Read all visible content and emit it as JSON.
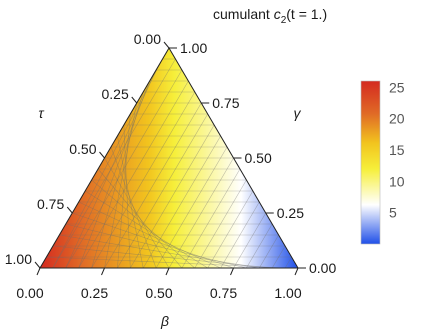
{
  "chart_data": {
    "type": "heatmap",
    "title": "cumulant c₂(t = 1.)",
    "title_parts": {
      "pre": "cumulant ",
      "var": "c",
      "sub": "2",
      "post": "(t = 1.)"
    },
    "axes": {
      "beta": {
        "label": "β",
        "ticks": [
          "0.00",
          "0.25",
          "0.50",
          "0.75",
          "1.00"
        ]
      },
      "gamma": {
        "label": "γ",
        "ticks": [
          "0.00",
          "0.25",
          "0.50",
          "0.75",
          "1.00"
        ]
      },
      "tau": {
        "label": "τ",
        "ticks": [
          "0.00",
          "0.25",
          "0.50",
          "0.75",
          "1.00"
        ]
      }
    },
    "value_model": "value decreases linearly with gamma, from 25 at gamma=0 to 0 at gamma=1",
    "colorbar": {
      "range": [
        0,
        26
      ],
      "ticks": [
        "5",
        "10",
        "15",
        "20",
        "25"
      ],
      "colors": [
        "#1f4fe8",
        "#ffffff",
        "#f6ef3a",
        "#f2c41e",
        "#e06a26",
        "#d42a20"
      ]
    },
    "grid": true
  }
}
